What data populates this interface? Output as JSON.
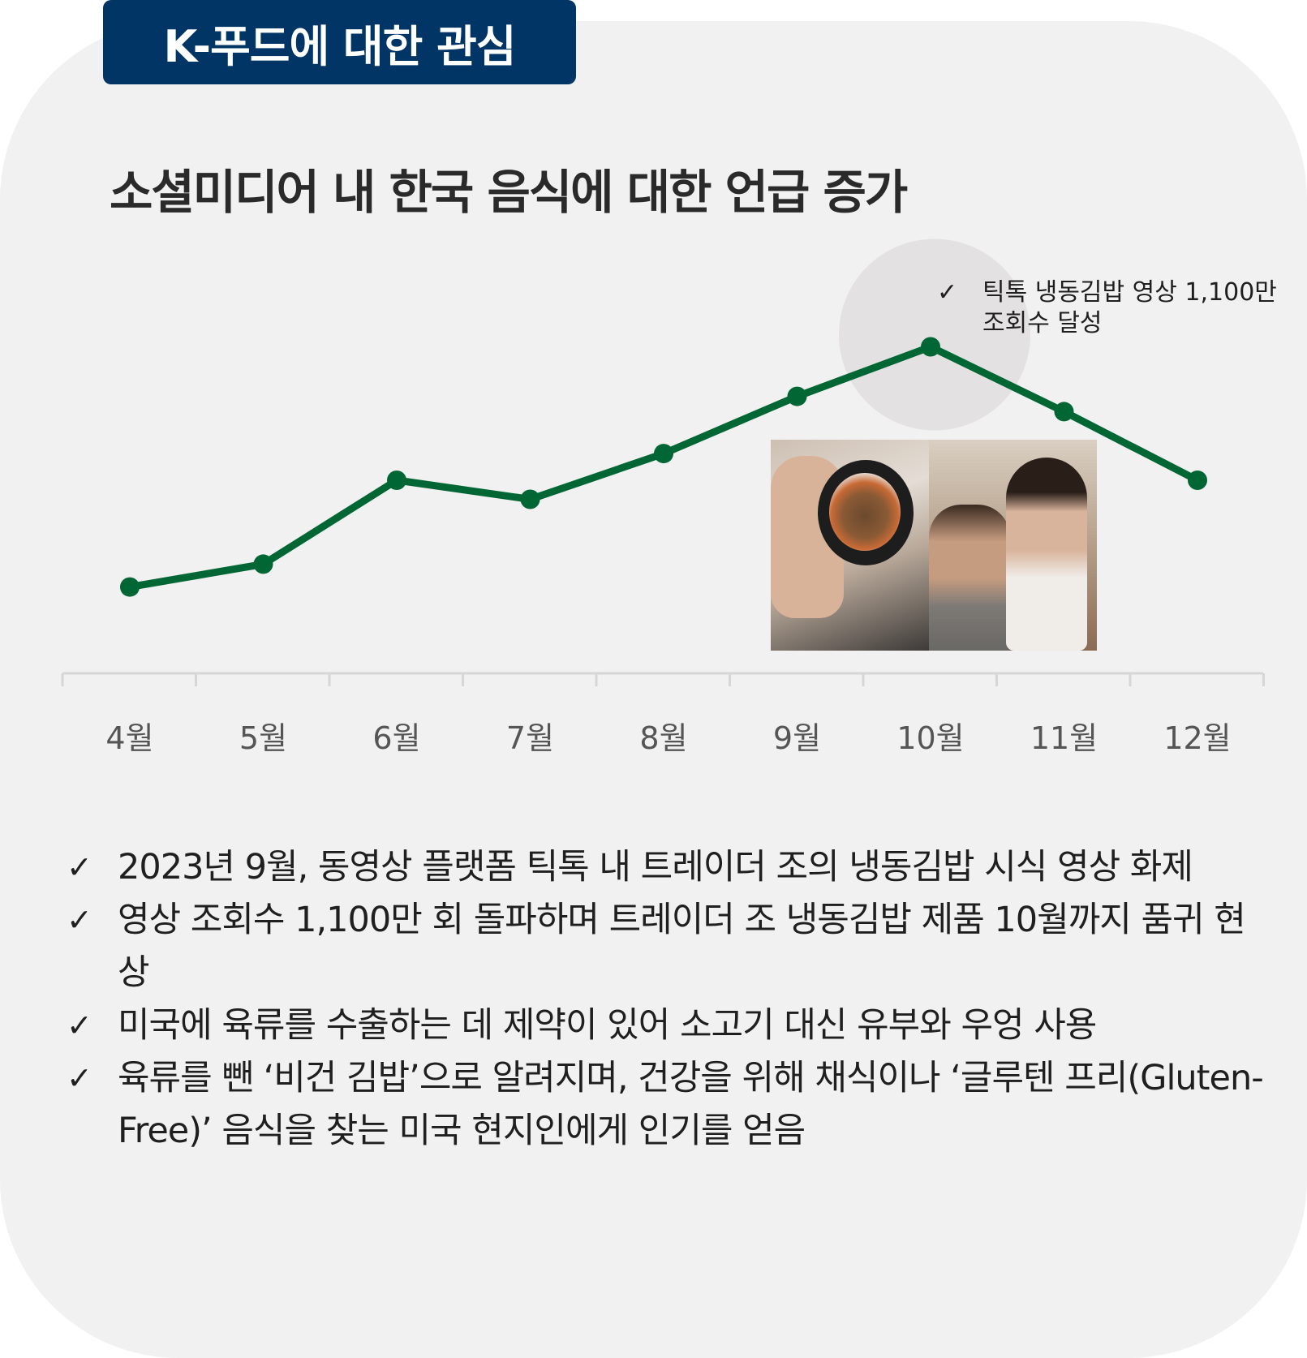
{
  "tag": "K-푸드에 대한 관심",
  "headline": "소셜미디어 내 한국 음식에 대한 언급 증가",
  "chart_data": {
    "type": "line",
    "categories": [
      "4월",
      "5월",
      "6월",
      "7월",
      "8월",
      "9월",
      "10월",
      "11월",
      "12월"
    ],
    "values": [
      12,
      18,
      40,
      35,
      47,
      62,
      75,
      58,
      40
    ],
    "ylim": [
      0,
      100
    ],
    "line_color": "#006633",
    "grid": false,
    "annotation": {
      "category": "10월",
      "check": "✓",
      "lines": [
        "틱톡 냉동김밥 영상 1,100만",
        "조회수 달성"
      ]
    }
  },
  "bullets": {
    "check": "✓",
    "items": [
      "2023년 9월, 동영상 플랫폼 틱톡 내 트레이더 조의 냉동김밥 시식 영상 화제",
      "영상 조회수 1,100만 회 돌파하며 트레이더 조 냉동김밥 제품 10월까지 품귀 현상",
      "미국에 육류를 수출하는 데 제약이 있어 소고기 대신 유부와 우엉 사용",
      "육류를 뺀 ‘비건 김밥’으로 알려지며, 건강을 위해 채식이나 ‘글루텐 프리(Gluten-Free)’ 음식을 찾는 미국 현지인에게 인기를 얻음"
    ]
  },
  "colors": {
    "tag_bg": "#003566",
    "card_bg": "#f1f1f1",
    "highlight": "#e3e1e1",
    "axis": "#d6d6d6"
  },
  "photo_icon": "tiktok-video-thumbnail"
}
